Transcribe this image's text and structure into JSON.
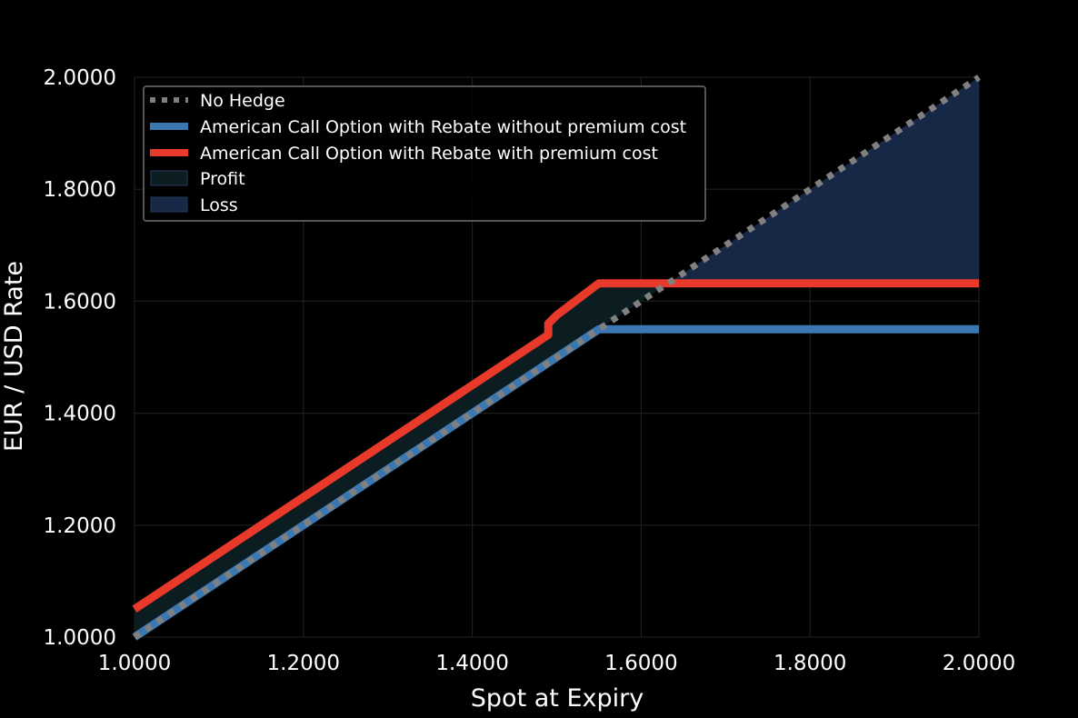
{
  "chart_data": {
    "type": "line",
    "title": "",
    "xlabel": "Spot at Expiry",
    "ylabel": "EUR / USD Rate",
    "xlim": [
      1.0,
      2.0
    ],
    "ylim": [
      1.0,
      2.0
    ],
    "xticks": [
      "1.0000",
      "1.2000",
      "1.4000",
      "1.6000",
      "1.8000",
      "2.0000"
    ],
    "yticks": [
      "1.0000",
      "1.2000",
      "1.4000",
      "1.6000",
      "1.8000",
      "2.0000"
    ],
    "grid": true,
    "legend_position": "upper-left",
    "series": [
      {
        "name": "No Hedge",
        "style": "dotted",
        "color": "#808080",
        "x": [
          1.0,
          2.0
        ],
        "y": [
          1.0,
          2.0
        ]
      },
      {
        "name": "American Call Option with Rebate without premium cost",
        "style": "solid",
        "color": "#3b78b2",
        "x": [
          1.0,
          1.55,
          2.0
        ],
        "y": [
          1.0,
          1.55,
          1.55
        ]
      },
      {
        "name": "American Call Option with Rebate with premium cost",
        "style": "solid",
        "color": "#e8392a",
        "x": [
          1.0,
          1.49,
          1.49,
          1.5,
          1.55,
          2.0
        ],
        "y": [
          1.05,
          1.54,
          1.56,
          1.575,
          1.632,
          1.632
        ]
      }
    ],
    "fills": [
      {
        "name": "Profit",
        "color": "#0c1d22",
        "between": [
          "American Call Option with Rebate with premium cost",
          "No Hedge"
        ],
        "x_range": [
          1.0,
          1.632
        ]
      },
      {
        "name": "Loss",
        "color": "#172746",
        "between": [
          "No Hedge",
          "American Call Option with Rebate with premium cost"
        ],
        "x_range": [
          1.632,
          2.0
        ]
      }
    ]
  }
}
